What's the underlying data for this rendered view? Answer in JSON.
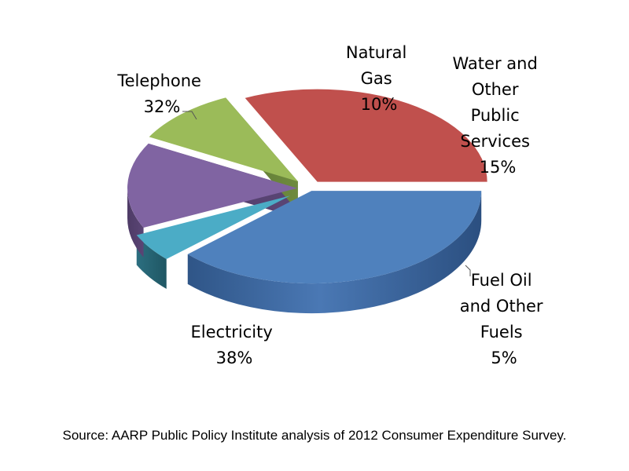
{
  "chart_data": {
    "type": "pie",
    "style": "3d-exploded",
    "slices": [
      {
        "label": "Electricity",
        "value": 38,
        "display": "38%",
        "color": "#4f81bd"
      },
      {
        "label": "Fuel Oil and Other Fuels",
        "value": 5,
        "display": "5%",
        "color": "#4bacc6"
      },
      {
        "label": "Water and Other Public Services",
        "value": 15,
        "display": "15%",
        "color": "#8064a2"
      },
      {
        "label": "Natural Gas",
        "value": 10,
        "display": "10%",
        "color": "#9bbb59"
      },
      {
        "label": "Telephone",
        "value": 32,
        "display": "32%",
        "color": "#c0504d"
      }
    ],
    "legend": "none"
  },
  "labels": {
    "electricity": [
      "Electricity",
      "38%"
    ],
    "fuel_oil": [
      "Fuel Oil",
      "and Other",
      "Fuels",
      "5%"
    ],
    "water": [
      "Water and",
      "Other",
      "Public",
      "Services",
      "15%"
    ],
    "natural_gas": [
      "Natural",
      "Gas",
      "10%"
    ],
    "telephone": [
      "Telephone",
      "32%"
    ]
  },
  "source": "Source:  AARP Public Policy Institute analysis of 2012 Consumer Expenditure Survey."
}
